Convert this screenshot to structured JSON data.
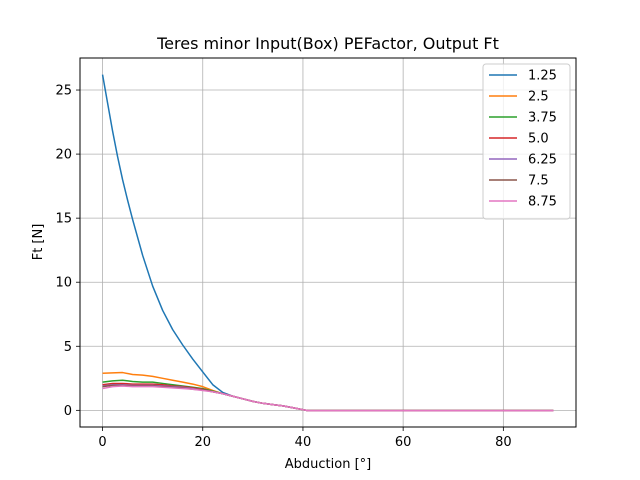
{
  "chart_data": {
    "type": "line",
    "title": "Teres minor Input(Box) PEFactor, Output Ft",
    "xlabel": "Abduction [°]",
    "ylabel": "Ft [N]",
    "xlim": [
      -4.5,
      94.5
    ],
    "ylim": [
      -1.3,
      27.5
    ],
    "xticks": [
      0,
      20,
      40,
      60,
      80
    ],
    "yticks": [
      0,
      5,
      10,
      15,
      20,
      25
    ],
    "grid": true,
    "legend_position": "top-right",
    "series": [
      {
        "name": "1.25",
        "color": "#1f77b4",
        "x": [
          0,
          1,
          2,
          3,
          4,
          5,
          6,
          8,
          10,
          12,
          14,
          16,
          18,
          20,
          22,
          24,
          25,
          26,
          28,
          30,
          32,
          34,
          36,
          38,
          40,
          41,
          45,
          50,
          60,
          70,
          80,
          90
        ],
        "y": [
          26.2,
          24.0,
          21.8,
          19.8,
          18.0,
          16.4,
          14.9,
          12.1,
          9.7,
          7.8,
          6.3,
          5.1,
          4.0,
          3.0,
          2.0,
          1.4,
          1.25,
          1.1,
          0.9,
          0.7,
          0.55,
          0.45,
          0.35,
          0.2,
          0.05,
          -0.02,
          -0.02,
          -0.02,
          -0.02,
          -0.02,
          -0.02,
          -0.02
        ]
      },
      {
        "name": "2.5",
        "color": "#ff7f0e",
        "x": [
          0,
          2,
          4,
          6,
          8,
          10,
          12,
          14,
          16,
          18,
          20,
          22,
          24,
          25,
          26,
          28,
          30,
          32,
          34,
          36,
          38,
          40,
          41,
          45,
          50,
          60,
          70,
          80,
          90
        ],
        "y": [
          2.9,
          2.92,
          2.95,
          2.8,
          2.75,
          2.65,
          2.5,
          2.35,
          2.2,
          2.05,
          1.85,
          1.55,
          1.3,
          1.2,
          1.1,
          0.9,
          0.7,
          0.55,
          0.45,
          0.35,
          0.2,
          0.05,
          -0.02,
          -0.02,
          -0.02,
          -0.02,
          -0.02,
          -0.02,
          -0.02
        ]
      },
      {
        "name": "3.75",
        "color": "#2ca02c",
        "x": [
          0,
          2,
          4,
          6,
          8,
          10,
          12,
          14,
          16,
          18,
          20,
          22,
          24,
          25,
          26,
          28,
          30,
          32,
          34,
          36,
          38,
          40,
          41,
          45,
          50,
          60,
          70,
          80,
          90
        ],
        "y": [
          2.2,
          2.3,
          2.35,
          2.25,
          2.2,
          2.2,
          2.1,
          2.0,
          1.9,
          1.8,
          1.7,
          1.5,
          1.3,
          1.2,
          1.1,
          0.9,
          0.7,
          0.55,
          0.45,
          0.35,
          0.2,
          0.05,
          -0.02,
          -0.02,
          -0.02,
          -0.02,
          -0.02,
          -0.02,
          -0.02
        ]
      },
      {
        "name": "5.0",
        "color": "#d62728",
        "x": [
          0,
          2,
          4,
          6,
          8,
          10,
          12,
          14,
          16,
          18,
          20,
          22,
          24,
          25,
          26,
          28,
          30,
          32,
          34,
          36,
          38,
          40,
          41,
          45,
          50,
          60,
          70,
          80,
          90
        ],
        "y": [
          2.0,
          2.1,
          2.1,
          2.05,
          2.05,
          2.05,
          2.0,
          1.9,
          1.85,
          1.75,
          1.65,
          1.45,
          1.3,
          1.2,
          1.1,
          0.9,
          0.7,
          0.55,
          0.45,
          0.35,
          0.2,
          0.05,
          -0.02,
          -0.02,
          -0.02,
          -0.02,
          -0.02,
          -0.02,
          -0.02
        ]
      },
      {
        "name": "6.25",
        "color": "#9467bd",
        "x": [
          0,
          2,
          4,
          6,
          8,
          10,
          12,
          14,
          16,
          18,
          20,
          22,
          24,
          25,
          26,
          28,
          30,
          32,
          34,
          36,
          38,
          40,
          41,
          45,
          50,
          60,
          70,
          80,
          90
        ],
        "y": [
          1.9,
          2.0,
          2.0,
          1.95,
          1.95,
          1.95,
          1.9,
          1.85,
          1.8,
          1.7,
          1.6,
          1.45,
          1.3,
          1.2,
          1.1,
          0.9,
          0.7,
          0.55,
          0.45,
          0.35,
          0.2,
          0.05,
          -0.02,
          -0.02,
          -0.02,
          -0.02,
          -0.02,
          -0.02,
          -0.02
        ]
      },
      {
        "name": "7.5",
        "color": "#8c564b",
        "x": [
          0,
          2,
          4,
          6,
          8,
          10,
          12,
          14,
          16,
          18,
          20,
          22,
          24,
          25,
          26,
          28,
          30,
          32,
          34,
          36,
          38,
          40,
          41,
          45,
          50,
          60,
          70,
          80,
          90
        ],
        "y": [
          1.85,
          1.95,
          1.95,
          1.9,
          1.9,
          1.9,
          1.85,
          1.8,
          1.75,
          1.65,
          1.6,
          1.45,
          1.3,
          1.2,
          1.1,
          0.9,
          0.7,
          0.55,
          0.45,
          0.35,
          0.2,
          0.05,
          -0.02,
          -0.02,
          -0.02,
          -0.02,
          -0.02,
          -0.02,
          -0.02
        ]
      },
      {
        "name": "8.75",
        "color": "#e377c2",
        "x": [
          0,
          2,
          4,
          6,
          8,
          10,
          12,
          14,
          16,
          18,
          20,
          22,
          24,
          25,
          26,
          28,
          30,
          32,
          34,
          36,
          38,
          40,
          41,
          45,
          50,
          60,
          70,
          80,
          90
        ],
        "y": [
          1.7,
          1.85,
          1.9,
          1.85,
          1.85,
          1.85,
          1.8,
          1.75,
          1.7,
          1.65,
          1.55,
          1.45,
          1.3,
          1.2,
          1.1,
          0.9,
          0.7,
          0.55,
          0.45,
          0.35,
          0.2,
          0.05,
          -0.02,
          -0.02,
          -0.02,
          -0.02,
          -0.02,
          -0.02,
          -0.02
        ]
      }
    ]
  }
}
